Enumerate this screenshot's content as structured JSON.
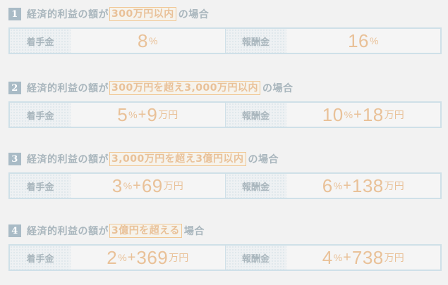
{
  "sections": [
    {
      "number": "1",
      "prefix": "経済的利益の額が",
      "highlight": "300万円以内",
      "suffix": "の場合",
      "chakushu": {
        "label": "着手金",
        "pct": "8",
        "pct_unit": "%",
        "plus": "",
        "amount": "",
        "amount_unit": ""
      },
      "hoshu": {
        "label": "報酬金",
        "pct": "16",
        "pct_unit": "%",
        "plus": "",
        "amount": "",
        "amount_unit": ""
      }
    },
    {
      "number": "2",
      "prefix": "経済的利益の額が",
      "highlight": "300万円を超え3,000万円以内",
      "suffix": "の場合",
      "chakushu": {
        "label": "着手金",
        "pct": "5",
        "pct_unit": "%",
        "plus": "+",
        "amount": "9",
        "amount_unit": "万円"
      },
      "hoshu": {
        "label": "報酬金",
        "pct": "10",
        "pct_unit": "%",
        "plus": "+",
        "amount": "18",
        "amount_unit": "万円"
      }
    },
    {
      "number": "3",
      "prefix": "経済的利益の額が",
      "highlight": "3,000万円を超え3億円以内",
      "suffix": "の場合",
      "chakushu": {
        "label": "着手金",
        "pct": "3",
        "pct_unit": "%",
        "plus": "+",
        "amount": "69",
        "amount_unit": "万円"
      },
      "hoshu": {
        "label": "報酬金",
        "pct": "6",
        "pct_unit": "%",
        "plus": "+",
        "amount": "138",
        "amount_unit": "万円"
      }
    },
    {
      "number": "4",
      "prefix": "経済的利益の額が",
      "highlight": "3億円を超える",
      "suffix": "場合",
      "chakushu": {
        "label": "着手金",
        "pct": "2",
        "pct_unit": "%",
        "plus": "+",
        "amount": "369",
        "amount_unit": "万円"
      },
      "hoshu": {
        "label": "報酬金",
        "pct": "4",
        "pct_unit": "%",
        "plus": "+",
        "amount": "738",
        "amount_unit": "万円"
      }
    }
  ]
}
